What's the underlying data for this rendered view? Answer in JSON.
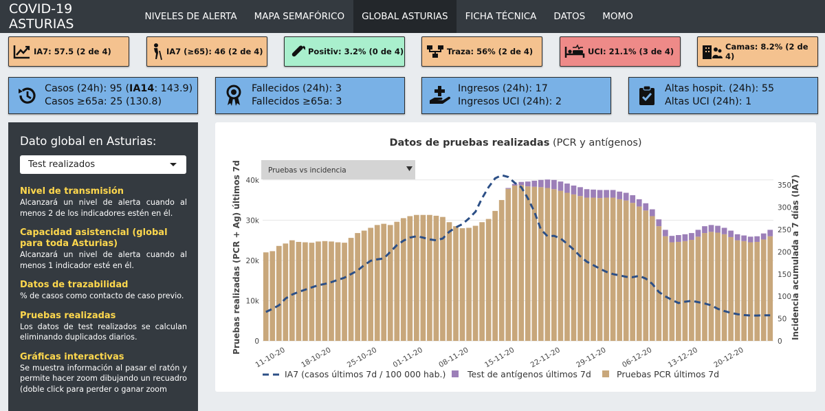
{
  "navbar": {
    "brand": "COVID-19 ASTURIAS",
    "items": [
      "NIVELES DE ALERTA",
      "MAPA SEMAFÓRICO",
      "GLOBAL ASTURIAS",
      "FICHA TÉCNICA",
      "DATOS",
      "MOMO"
    ],
    "active": "GLOBAL ASTURIAS"
  },
  "indicators": [
    {
      "icon": "trend-chart-icon",
      "label": "IA7: 57.5 (2 de 4)",
      "status": "orange"
    },
    {
      "icon": "elderly-person-icon",
      "label": "IA7 (≥65): 46 (2 de 4)",
      "status": "orange"
    },
    {
      "icon": "vial-icon",
      "label": "Positiv: 3.2% (0 de 4)",
      "status": "green"
    },
    {
      "icon": "network-icon",
      "label": "Traza: 56% (2 de 4)",
      "status": "orange"
    },
    {
      "icon": "hospital-bed-icon",
      "label": "UCI: 21.1% (3 de 4)",
      "status": "red"
    },
    {
      "icon": "hospital-people-icon",
      "label": "Camas: 8.2% (2 de 4)",
      "status": "orange"
    }
  ],
  "stats": [
    {
      "icon": "history-icon",
      "line1_prefix": "Casos (24h): 95 (",
      "line1_bold": "IA14",
      "line1_suffix": ": 143.9)",
      "line2": "Casos ≥65a: 25 (130.8)"
    },
    {
      "icon": "ribbon-icon",
      "line1": "Fallecidos (24h): 3",
      "line2": "Fallecidos ≥65a: 3"
    },
    {
      "icon": "hand-plus-icon",
      "line1": "Ingresos (24h): 17",
      "line2": "Ingresos UCI (24h): 2"
    },
    {
      "icon": "clipboard-check-icon",
      "line1": "Altas hospit. (24h): 55",
      "line2": "Altas UCI (24h): 1"
    }
  ],
  "sidebar": {
    "title": "Dato global en Asturias:",
    "select_value": "Test realizados",
    "sections": [
      {
        "heading": "Nivel de transmisión",
        "text": "Alcanzará un nivel de alerta cuando al menos 2 de los indicadores estén en él."
      },
      {
        "heading": "Capacidad asistencial (global para toda Asturias)",
        "text": "Alcanzará un nivel de alerta cuando al menos 1 indicador esté en él."
      },
      {
        "heading": "Datos de trazabilidad",
        "text": "% de casos como contacto de caso previo."
      },
      {
        "heading": "Pruebas realizadas",
        "text": "Los datos de test realizados se calculan eliminando duplicados diarios."
      },
      {
        "heading": "Gráficas interactivas",
        "text": "Se muestra información al pasar el ratón y permite hacer zoom dibujando un recuadro (doble click para perder o ganar zoom"
      }
    ]
  },
  "chart": {
    "title_bold": "Datos de pruebas realizadas",
    "title_rest": " (PCR y antígenos)",
    "dropdown": "Pruebas vs incidencia",
    "legend": [
      "IA7 (casos últimos 7d / 100 000 hab.)",
      "Test de antígenos últimos 7d",
      "Pruebas PCR últimos 7d"
    ],
    "ylabel_left": "Pruebas realizadas (PCR + Ag) últimos 7d",
    "ylabel_right": "Incidencia acumulada a 7 días (IA7)",
    "yticks_left": [
      "0",
      "10k",
      "20k",
      "30k",
      "40k"
    ],
    "yticks_right": [
      "0",
      "50",
      "100",
      "150",
      "200",
      "250",
      "300",
      "350"
    ],
    "xticks": [
      "11-10-20",
      "18-10-20",
      "25-10-20",
      "01-11-20",
      "08-11-20",
      "15-11-20",
      "22-11-20",
      "29-11-20",
      "06-12-20",
      "13-12-20",
      "20-12-20"
    ]
  },
  "colors": {
    "pcr": "#c8a77b",
    "antigen": "#9c7fb8",
    "ia7": "#2c4f86",
    "navbar": "#343a40",
    "card_blue": "#79b1e6"
  },
  "chart_data": {
    "type": "bar",
    "title": "Datos de pruebas realizadas (PCR y antígenos)",
    "x_start": "08-10-20",
    "x_end": "24-12-20",
    "ylim_left": [
      0,
      41500
    ],
    "ylim_right": [
      0,
      375
    ],
    "series": [
      {
        "name": "Pruebas PCR últimos 7d",
        "values": [
          22000,
          22300,
          23600,
          24200,
          25000,
          24600,
          24500,
          24400,
          24700,
          24800,
          24700,
          24500,
          24400,
          25600,
          26800,
          27400,
          28100,
          28800,
          29100,
          28800,
          29600,
          30500,
          31000,
          31300,
          31300,
          31300,
          31100,
          30800,
          29500,
          28500,
          28000,
          28100,
          28600,
          29500,
          30300,
          32300,
          35000,
          37800,
          38600,
          38700,
          38400,
          38300,
          38200,
          38000,
          37700,
          37300,
          36800,
          36400,
          36000,
          35600,
          35600,
          35500,
          35600,
          35600,
          35200,
          34900,
          34300,
          33400,
          32400,
          31000,
          28500,
          26000,
          24500,
          24600,
          24800,
          25100,
          25900,
          26800,
          27100,
          26900,
          26500,
          25800,
          25000,
          24800,
          24500,
          24600,
          25200,
          26000
        ]
      },
      {
        "name": "Test de antígenos últimos 7d",
        "values": [
          0,
          0,
          0,
          0,
          0,
          0,
          0,
          0,
          0,
          0,
          0,
          0,
          0,
          0,
          0,
          0,
          0,
          0,
          0,
          0,
          0,
          0,
          0,
          0,
          0,
          0,
          0,
          0,
          0,
          0,
          0,
          0,
          0,
          0,
          0,
          0,
          0,
          200,
          400,
          800,
          1200,
          1500,
          1800,
          2100,
          2300,
          2300,
          2300,
          2200,
          2200,
          2100,
          2000,
          2000,
          1900,
          1900,
          1900,
          1900,
          1900,
          1800,
          1800,
          1700,
          1700,
          1600,
          1600,
          1700,
          1700,
          1700,
          1700,
          1700,
          1700,
          1700,
          1600,
          1600,
          1500,
          1400,
          1400,
          1400,
          1500,
          1600
        ]
      },
      {
        "name": "IA7 (casos últimos 7d / 100 000 hab.)",
        "values": [
          65,
          72,
          80,
          95,
          104,
          110,
          115,
          120,
          125,
          128,
          132,
          137,
          142,
          150,
          158,
          170,
          180,
          183,
          185,
          200,
          215,
          225,
          232,
          235,
          232,
          228,
          226,
          230,
          245,
          255,
          262,
          275,
          290,
          320,
          345,
          365,
          372,
          368,
          355,
          345,
          320,
          290,
          250,
          235,
          236,
          230,
          218,
          205,
          190,
          178,
          170,
          162,
          155,
          150,
          147,
          144,
          143,
          146,
          140,
          128,
          110,
          100,
          92,
          85,
          88,
          90,
          87,
          84,
          80,
          72,
          67,
          63,
          60,
          58,
          57,
          57,
          57.5,
          57.5
        ]
      }
    ]
  }
}
